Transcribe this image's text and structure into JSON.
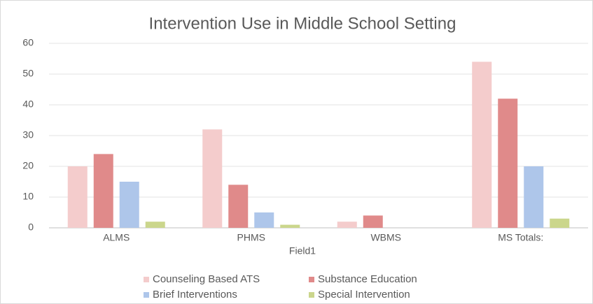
{
  "chart_data": {
    "type": "bar",
    "title": "Intervention Use in Middle School Setting",
    "x_label": "Field1",
    "categories": [
      "ALMS",
      "PHMS",
      "WBMS",
      "MS Totals:"
    ],
    "series": [
      {
        "name": "Counseling Based ATS",
        "color": "#f4cccc",
        "values": [
          20,
          32,
          2,
          54
        ]
      },
      {
        "name": "Substance Education",
        "color": "#e08a8a",
        "values": [
          24,
          14,
          4,
          42
        ]
      },
      {
        "name": "Brief Interventions",
        "color": "#aec6ea",
        "values": [
          15,
          5,
          0,
          20
        ]
      },
      {
        "name": "Special Intervention",
        "color": "#cbd68c",
        "values": [
          2,
          1,
          0,
          3
        ]
      }
    ],
    "ylim": [
      0,
      60
    ],
    "yticks": [
      0,
      10,
      20,
      30,
      40,
      50,
      60
    ],
    "grid": true,
    "legend": "bottom"
  }
}
